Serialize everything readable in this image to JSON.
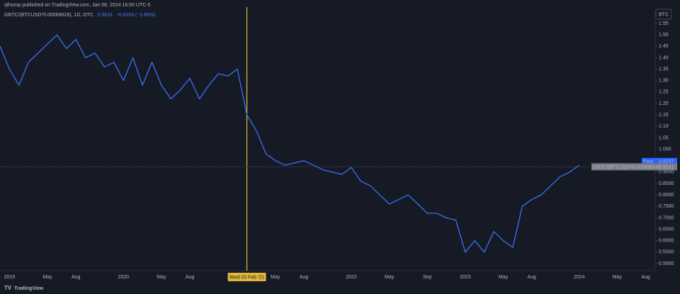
{
  "header": {
    "publisher": "qthomp published on TradingView.com, Jan 08, 2024 16:50 UTC-5",
    "symbol": "GBTC/(BTCUSD*0.00089626), 1D, OTC",
    "last": "0.9231",
    "change": "−0.0153 (−1.63%)",
    "currency": "BTC",
    "brand": "TradingView"
  },
  "chart_data": {
    "type": "line",
    "x": [
      "2018-12",
      "2019-01",
      "2019-02",
      "2019-03",
      "2019-04",
      "2019-05",
      "2019-06",
      "2019-07",
      "2019-08",
      "2019-09",
      "2019-10",
      "2019-11",
      "2019-12",
      "2020-01",
      "2020-02",
      "2020-03",
      "2020-04",
      "2020-05",
      "2020-06",
      "2020-07",
      "2020-08",
      "2020-09",
      "2020-10",
      "2020-11",
      "2020-12",
      "2021-01",
      "2021-02",
      "2021-03",
      "2021-04",
      "2021-05",
      "2021-06",
      "2021-07",
      "2021-08",
      "2021-09",
      "2021-10",
      "2021-11",
      "2021-12",
      "2022-01",
      "2022-02",
      "2022-03",
      "2022-04",
      "2022-05",
      "2022-06",
      "2022-07",
      "2022-08",
      "2022-09",
      "2022-10",
      "2022-11",
      "2022-12",
      "2023-01",
      "2023-02",
      "2023-03",
      "2023-04",
      "2023-05",
      "2023-06",
      "2023-07",
      "2023-08",
      "2023-09",
      "2023-10",
      "2023-11",
      "2023-12",
      "2024-01"
    ],
    "series": [
      {
        "name": "GBTC/(BTCUSD*0.00089626)",
        "color": "#3a6ff7",
        "values": [
          1.45,
          1.35,
          1.28,
          1.38,
          1.42,
          1.46,
          1.5,
          1.44,
          1.48,
          1.4,
          1.42,
          1.36,
          1.38,
          1.3,
          1.4,
          1.28,
          1.38,
          1.28,
          1.22,
          1.26,
          1.31,
          1.22,
          1.28,
          1.33,
          1.32,
          1.35,
          1.15,
          1.08,
          0.98,
          0.95,
          0.93,
          0.94,
          0.95,
          0.93,
          0.91,
          0.9,
          0.89,
          0.92,
          0.86,
          0.84,
          0.8,
          0.76,
          0.78,
          0.8,
          0.76,
          0.72,
          0.72,
          0.7,
          0.69,
          0.55,
          0.6,
          0.55,
          0.64,
          0.6,
          0.57,
          0.75,
          0.78,
          0.8,
          0.84,
          0.88,
          0.9,
          0.93
        ]
      }
    ],
    "ylim": [
      0.469,
      1.609
    ],
    "yticks": [
      1.55,
      {
        "value": 1.5,
        "label": "1.50"
      },
      1.45,
      {
        "value": 1.4,
        "label": "1.40"
      },
      1.35,
      {
        "value": 1.3,
        "label": "1.30"
      },
      1.25,
      {
        "value": 1.2,
        "label": "1.20"
      },
      1.15,
      {
        "value": 1.1,
        "label": "1.10"
      },
      1.05,
      {
        "value": 1,
        "label": "1.000"
      },
      {
        "value": 0.95,
        "label": "0.9500"
      },
      {
        "value": 0.9,
        "label": "0.9000"
      },
      {
        "value": 0.85,
        "label": "0.8500"
      },
      {
        "value": 0.8,
        "label": "0.8000"
      },
      {
        "value": 0.75,
        "label": "0.7500"
      },
      {
        "value": 0.7,
        "label": "0.7000"
      },
      {
        "value": 0.65,
        "label": "0.6500"
      },
      {
        "value": 0.6,
        "label": "0.6000"
      },
      {
        "value": 0.55,
        "label": "0.5500"
      },
      {
        "value": 0.5,
        "label": "0.5000"
      }
    ],
    "xlim": [
      "2018-12",
      "2024-09"
    ],
    "xticks": [
      {
        "value": "2019-01",
        "label": "2019"
      },
      {
        "value": "2019-05",
        "label": "May"
      },
      {
        "value": "2019-08",
        "label": "Aug"
      },
      {
        "value": "2020-01",
        "label": "2020"
      },
      {
        "value": "2020-05",
        "label": "May"
      },
      {
        "value": "2020-08",
        "label": "Aug"
      },
      {
        "value": "2021-05",
        "label": "May"
      },
      {
        "value": "2021-08",
        "label": "Aug"
      },
      {
        "value": "2022-01",
        "label": "2022"
      },
      {
        "value": "2022-05",
        "label": "May"
      },
      {
        "value": "2022-09",
        "label": "Sep"
      },
      {
        "value": "2023-01",
        "label": "2023"
      },
      {
        "value": "2023-05",
        "label": "May"
      },
      {
        "value": "2023-08",
        "label": "Aug"
      },
      {
        "value": "2024-01",
        "label": "2024"
      },
      {
        "value": "2024-05",
        "label": "May"
      },
      {
        "value": "2024-08",
        "label": "Aug"
      }
    ],
    "crosshair": {
      "x": "2021-02",
      "label": "Wed 03 Feb '21"
    },
    "last_price": 0.9231,
    "post": {
      "label": "Post",
      "value": 0.9247
    },
    "grid": false
  }
}
